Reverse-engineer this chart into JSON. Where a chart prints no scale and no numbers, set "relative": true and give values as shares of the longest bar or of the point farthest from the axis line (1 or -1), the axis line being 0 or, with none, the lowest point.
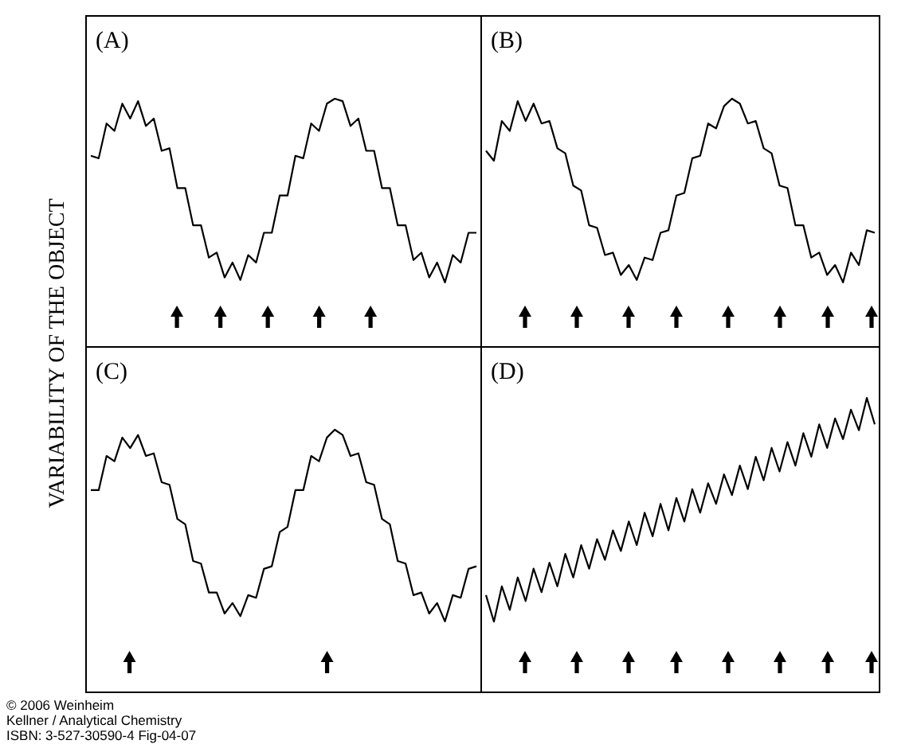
{
  "chart_data": [
    {
      "type": "line",
      "title": "(A)",
      "ylabel": "VARIABILITY OF THE OBJECT",
      "relative": true,
      "color": "#000000",
      "categories": [
        null,
        null,
        null,
        null,
        null,
        null,
        null,
        null,
        null,
        null,
        null,
        null,
        null,
        null,
        null,
        null,
        null,
        null,
        null,
        null,
        null,
        null,
        null,
        null,
        null,
        null,
        null,
        null,
        null,
        null,
        null,
        null,
        null,
        null,
        null,
        null,
        null,
        null,
        null,
        null,
        null,
        null,
        null,
        null,
        null,
        null,
        null,
        null,
        null,
        null
      ],
      "values": [
        0.77,
        0.76,
        0.9,
        0.87,
        0.98,
        0.92,
        0.99,
        0.89,
        0.92,
        0.79,
        0.8,
        0.64,
        0.64,
        0.49,
        0.49,
        0.36,
        0.38,
        0.28,
        0.34,
        0.27,
        0.37,
        0.34,
        0.46,
        0.46,
        0.61,
        0.61,
        0.77,
        0.76,
        0.9,
        0.87,
        0.98,
        1,
        0.99,
        0.89,
        0.92,
        0.79,
        0.79,
        0.64,
        0.64,
        0.49,
        0.49,
        0.35,
        0.38,
        0.28,
        0.34,
        0.26,
        0.37,
        0.34,
        0.46,
        0.46
      ]
    },
    {
      "type": "line",
      "title": "(B)",
      "relative": true,
      "color": "#000000",
      "categories": [
        null,
        null,
        null,
        null,
        null,
        null,
        null,
        null,
        null,
        null,
        null,
        null,
        null,
        null,
        null,
        null,
        null,
        null,
        null,
        null,
        null,
        null,
        null,
        null,
        null,
        null,
        null,
        null,
        null,
        null,
        null,
        null,
        null,
        null,
        null,
        null,
        null,
        null,
        null,
        null,
        null,
        null,
        null,
        null,
        null,
        null,
        null,
        null,
        null,
        null
      ],
      "values": [
        0.79,
        0.75,
        0.91,
        0.87,
        0.99,
        0.91,
        0.98,
        0.9,
        0.91,
        0.8,
        0.78,
        0.65,
        0.63,
        0.49,
        0.48,
        0.37,
        0.38,
        0.29,
        0.33,
        0.27,
        0.36,
        0.35,
        0.46,
        0.47,
        0.61,
        0.62,
        0.76,
        0.77,
        0.9,
        0.88,
        0.97,
        1,
        0.98,
        0.9,
        0.91,
        0.8,
        0.78,
        0.65,
        0.64,
        0.49,
        0.49,
        0.36,
        0.38,
        0.29,
        0.33,
        0.26,
        0.38,
        0.33,
        0.47,
        0.46
      ]
    },
    {
      "type": "line",
      "title": "(C)",
      "relative": true,
      "color": "#000000",
      "categories": [
        null,
        null,
        null,
        null,
        null,
        null,
        null,
        null,
        null,
        null,
        null,
        null,
        null,
        null,
        null,
        null,
        null,
        null,
        null,
        null,
        null,
        null,
        null,
        null,
        null,
        null,
        null,
        null,
        null,
        null,
        null,
        null,
        null,
        null,
        null,
        null,
        null,
        null,
        null,
        null,
        null,
        null,
        null,
        null,
        null,
        null,
        null,
        null,
        null,
        null
      ],
      "values": [
        0.77,
        0.77,
        0.9,
        0.88,
        0.97,
        0.93,
        0.98,
        0.9,
        0.91,
        0.8,
        0.79,
        0.66,
        0.64,
        0.5,
        0.49,
        0.38,
        0.38,
        0.3,
        0.34,
        0.29,
        0.37,
        0.36,
        0.47,
        0.48,
        0.61,
        0.63,
        0.77,
        0.77,
        0.9,
        0.88,
        0.97,
        1,
        0.98,
        0.9,
        0.91,
        0.8,
        0.79,
        0.66,
        0.64,
        0.5,
        0.49,
        0.37,
        0.38,
        0.3,
        0.34,
        0.27,
        0.37,
        0.36,
        0.47,
        0.48
      ],
      "annotations": [
        "© 2006 Weinheim",
        "Kellner / Analytical Chemistry",
        "ISBN: 3-527-30590-4   Fig-04-07"
      ]
    },
    {
      "type": "line",
      "title": "(D)",
      "relative": true,
      "color": "#000000",
      "categories": [
        null,
        null,
        null,
        null,
        null,
        null,
        null,
        null,
        null,
        null,
        null,
        null,
        null,
        null,
        null,
        null,
        null,
        null,
        null,
        null,
        null,
        null,
        null,
        null,
        null,
        null,
        null,
        null,
        null,
        null,
        null,
        null,
        null,
        null,
        null,
        null,
        null,
        null,
        null,
        null,
        null,
        null,
        null,
        null,
        null,
        null,
        null,
        null,
        null,
        null
      ],
      "values": [
        0.33,
        0.24,
        0.36,
        0.28,
        0.39,
        0.31,
        0.42,
        0.34,
        0.44,
        0.36,
        0.47,
        0.39,
        0.5,
        0.42,
        0.52,
        0.45,
        0.55,
        0.48,
        0.58,
        0.5,
        0.61,
        0.53,
        0.64,
        0.55,
        0.66,
        0.58,
        0.69,
        0.61,
        0.71,
        0.64,
        0.74,
        0.67,
        0.77,
        0.69,
        0.8,
        0.72,
        0.83,
        0.75,
        0.85,
        0.77,
        0.88,
        0.8,
        0.91,
        0.83,
        0.93,
        0.86,
        0.96,
        0.89,
        1,
        0.91
      ]
    }
  ]
}
